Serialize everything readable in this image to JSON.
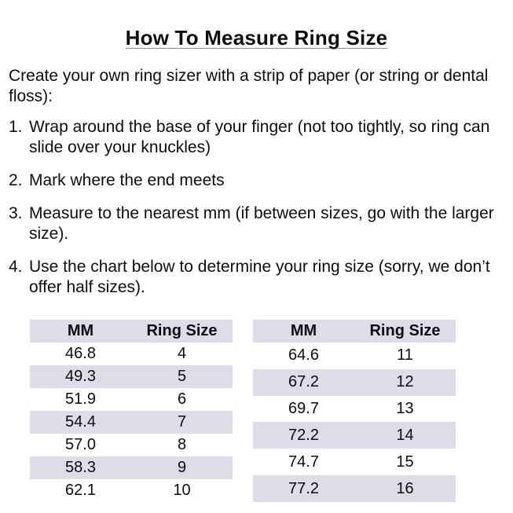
{
  "title": "How To Measure Ring Size",
  "intro": "Create your own ring sizer with a strip of paper (or string or dental floss):",
  "steps": [
    {
      "num": "1.",
      "text": "Wrap around the base of your finger (not too tightly, so ring can slide over your knuckles)"
    },
    {
      "num": "2.",
      "text": "Mark where the end meets"
    },
    {
      "num": "3.",
      "text": "Measure to the nearest mm (if between sizes, go with the larger size)."
    },
    {
      "num": "4.",
      "text": "Use the chart below to determine your ring size (sorry, we don’t offer half sizes)."
    }
  ],
  "tables": [
    {
      "headers": [
        "MM",
        "Ring Size"
      ],
      "rows": [
        [
          "46.8",
          "4"
        ],
        [
          "49.3",
          "5"
        ],
        [
          "51.9",
          "6"
        ],
        [
          "54.4",
          "7"
        ],
        [
          "57.0",
          "8"
        ],
        [
          "58.3",
          "9"
        ],
        [
          "62.1",
          "10"
        ]
      ]
    },
    {
      "headers": [
        "MM",
        "Ring Size"
      ],
      "rows": [
        [
          "64.6",
          "11"
        ],
        [
          "67.2",
          "12"
        ],
        [
          "69.7",
          "13"
        ],
        [
          "72.2",
          "14"
        ],
        [
          "74.7",
          "15"
        ],
        [
          "77.2",
          "16"
        ]
      ]
    }
  ],
  "colors": {
    "background": "#ffffff",
    "text": "#0d0d0d",
    "row_shade": "#dedce8"
  }
}
